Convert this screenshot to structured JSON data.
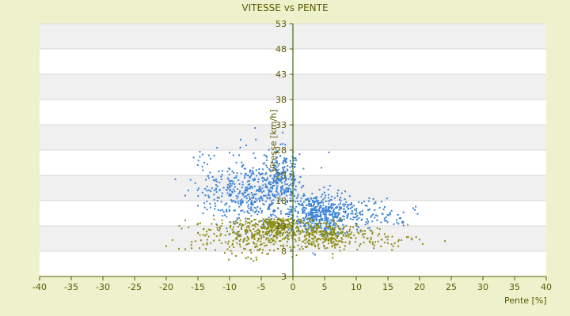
{
  "chart_data": {
    "type": "scatter",
    "title": "VITESSE vs PENTE",
    "xlabel": "Pente [%]",
    "ylabel": "Vitesse [km/h]",
    "xlim": [
      -40,
      40
    ],
    "ylim": [
      3,
      53
    ],
    "x_ticks": [
      -40,
      -35,
      -30,
      -25,
      -20,
      -15,
      -10,
      -5,
      0,
      5,
      10,
      15,
      20,
      25,
      30,
      35,
      40
    ],
    "y_ticks": [
      3,
      8,
      13,
      18,
      23,
      28,
      33,
      38,
      43,
      48,
      53
    ],
    "grid": true,
    "background_bands": true,
    "colors": {
      "band": "#f0f0f0",
      "plot": "#ffffff",
      "axis": "#5a5a00",
      "zero_line": "#3d6b1a"
    },
    "series": [
      {
        "color": "#3b82d6",
        "clusters": [
          {
            "cx": -6.5,
            "cy": 19.5,
            "sx": 3.2,
            "sy": 4.0,
            "n": 380
          },
          {
            "cx": -2,
            "cy": 22,
            "sx": 1.5,
            "sy": 3.0,
            "n": 220
          },
          {
            "cx": -12,
            "cy": 21,
            "sx": 2.3,
            "sy": 3.5,
            "n": 60
          },
          {
            "cx": 3.5,
            "cy": 15.5,
            "sx": 2.2,
            "sy": 2.2,
            "n": 400
          },
          {
            "cx": 9,
            "cy": 15.5,
            "sx": 3.2,
            "sy": 1.8,
            "n": 160
          },
          {
            "cx": 16,
            "cy": 15,
            "sx": 2.0,
            "sy": 1.0,
            "n": 25
          }
        ],
        "outliers": [
          [
            -10,
            27.5
          ],
          [
            -8.5,
            27
          ],
          [
            -13,
            26.3
          ],
          [
            -14,
            25.5
          ],
          [
            -13.5,
            25.2
          ],
          [
            -2.5,
            27.8
          ],
          [
            0,
            27.6
          ],
          [
            -16.5,
            20
          ],
          [
            -15,
            17
          ],
          [
            -17,
            19
          ],
          [
            4.5,
            24.5
          ],
          [
            -10.5,
            16.2
          ],
          [
            19,
            16.5
          ],
          [
            14,
            17.8
          ],
          [
            3.5,
            7.3
          ],
          [
            3.2,
            7.6
          ]
        ]
      },
      {
        "color": "#8c8c14",
        "clusters": [
          {
            "cx": -6,
            "cy": 11.5,
            "sx": 3.5,
            "sy": 2.2,
            "n": 280
          },
          {
            "cx": -2.5,
            "cy": 13,
            "sx": 1.5,
            "sy": 1.5,
            "n": 160
          },
          {
            "cx": 4.5,
            "cy": 11.5,
            "sx": 2.6,
            "sy": 1.8,
            "n": 260
          },
          {
            "cx": 11,
            "cy": 10.5,
            "sx": 4.5,
            "sy": 1.0,
            "n": 90
          },
          {
            "cx": -13.5,
            "cy": 11,
            "sx": 2.5,
            "sy": 1.5,
            "n": 35
          }
        ],
        "outliers": [
          [
            -20,
            9
          ],
          [
            -19,
            10.2
          ],
          [
            -18,
            8.5
          ],
          [
            -17,
            8.4
          ],
          [
            -16,
            8.6
          ],
          [
            24,
            10
          ],
          [
            18,
            10.8
          ],
          [
            20,
            10.3
          ],
          [
            15,
            9.6
          ],
          [
            13,
            9.8
          ]
        ]
      }
    ]
  }
}
